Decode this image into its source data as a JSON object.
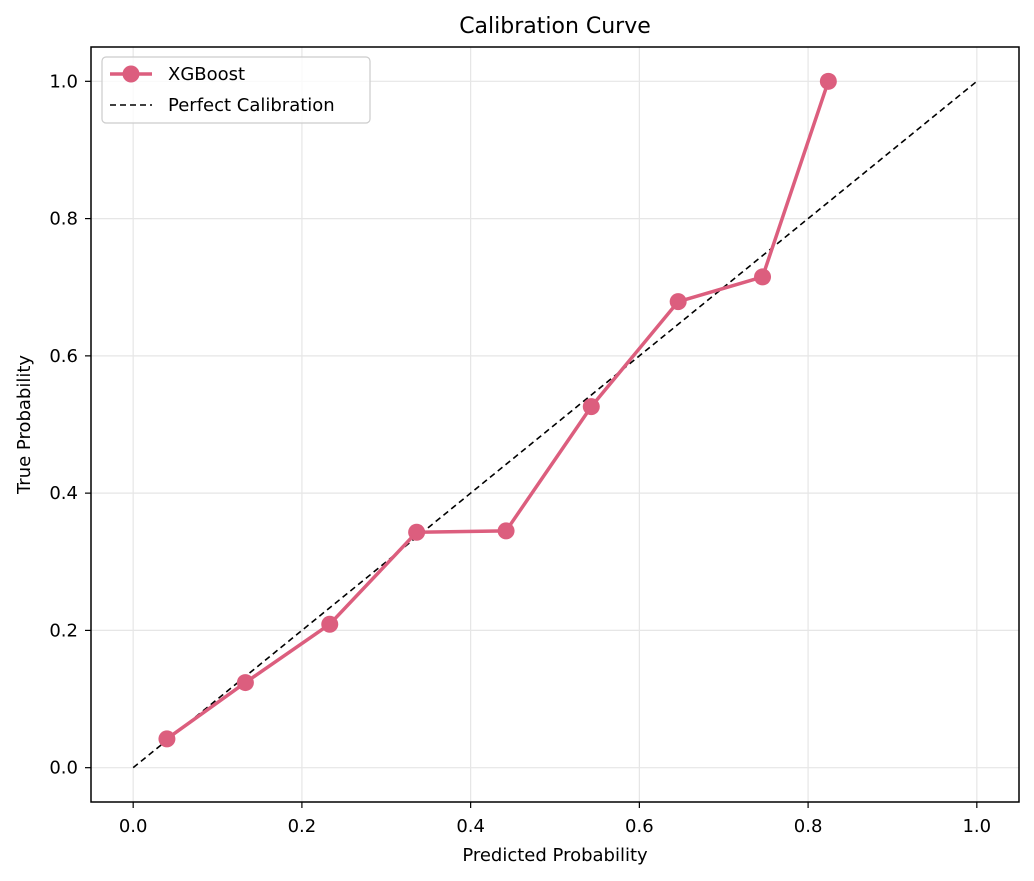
{
  "chart_data": {
    "type": "line",
    "title": "Calibration Curve",
    "xlabel": "Predicted Probability",
    "ylabel": "True Probability",
    "xlim": [
      -0.05,
      1.05
    ],
    "ylim": [
      -0.05,
      1.05
    ],
    "xticks": [
      0.0,
      0.2,
      0.4,
      0.6,
      0.8,
      1.0
    ],
    "yticks": [
      0.0,
      0.2,
      0.4,
      0.6,
      0.8,
      1.0
    ],
    "xtick_labels": [
      "0.0",
      "0.2",
      "0.4",
      "0.6",
      "0.8",
      "1.0"
    ],
    "ytick_labels": [
      "0.0",
      "0.2",
      "0.4",
      "0.6",
      "0.8",
      "1.0"
    ],
    "grid": true,
    "legend_position": "top-left",
    "series": [
      {
        "name": "XGBoost",
        "color": "#dc5e7e",
        "style": "solid-with-markers",
        "x": [
          0.04,
          0.133,
          0.233,
          0.336,
          0.442,
          0.543,
          0.646,
          0.746,
          0.824
        ],
        "y": [
          0.042,
          0.124,
          0.209,
          0.343,
          0.345,
          0.526,
          0.679,
          0.715,
          1.0
        ]
      },
      {
        "name": "Perfect Calibration",
        "color": "#000000",
        "style": "dashed",
        "x": [
          0.0,
          1.0
        ],
        "y": [
          0.0,
          1.0
        ]
      }
    ]
  }
}
